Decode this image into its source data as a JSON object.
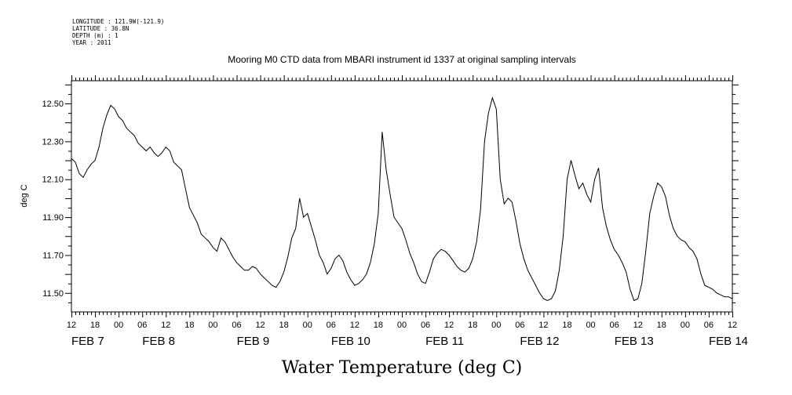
{
  "meta": {
    "longitude": "LONGITUDE : 121.9W(-121.9)",
    "latitude": "LATITUDE : 36.8N",
    "depth": "DEPTH (m) : 1",
    "year": "YEAR : 2011"
  },
  "chart_data": {
    "type": "line",
    "title": "Mooring M0 CTD data from MBARI instrument id 1337 at original sampling intervals",
    "xlabel": "Water Temperature (deg C)",
    "ylabel": "deg C",
    "x_range_hours": [
      0,
      168
    ],
    "ylim": [
      11.4,
      12.62
    ],
    "yticks": [
      "11.50",
      "11.70",
      "11.90",
      "12.10",
      "12.30",
      "12.50"
    ],
    "hour_ticks": [
      "12",
      "18",
      "00",
      "06",
      "12",
      "18",
      "00",
      "06",
      "12",
      "18",
      "00",
      "06",
      "12",
      "18",
      "00",
      "06",
      "12",
      "18",
      "00",
      "06",
      "12",
      "18",
      "00",
      "06",
      "12",
      "18",
      "00",
      "06",
      "12"
    ],
    "day_labels": [
      "FEB  7",
      "FEB  8",
      "FEB  9",
      "FEB 10",
      "FEB 11",
      "FEB 12",
      "FEB 13",
      "FEB 14"
    ],
    "series": [
      {
        "values": [
          [
            0,
            12.21
          ],
          [
            1,
            12.19
          ],
          [
            2,
            12.13
          ],
          [
            3,
            12.11
          ],
          [
            4,
            12.15
          ],
          [
            5,
            12.18
          ],
          [
            6,
            12.2
          ],
          [
            7,
            12.27
          ],
          [
            8,
            12.37
          ],
          [
            9,
            12.44
          ],
          [
            10,
            12.49
          ],
          [
            11,
            12.47
          ],
          [
            12,
            12.43
          ],
          [
            13,
            12.41
          ],
          [
            14,
            12.37
          ],
          [
            15,
            12.35
          ],
          [
            16,
            12.33
          ],
          [
            17,
            12.29
          ],
          [
            18,
            12.27
          ],
          [
            19,
            12.25
          ],
          [
            20,
            12.27
          ],
          [
            21,
            12.24
          ],
          [
            22,
            12.22
          ],
          [
            23,
            12.24
          ],
          [
            24,
            12.27
          ],
          [
            25,
            12.25
          ],
          [
            26,
            12.19
          ],
          [
            27,
            12.17
          ],
          [
            28,
            12.15
          ],
          [
            29,
            12.05
          ],
          [
            30,
            11.95
          ],
          [
            31,
            11.91
          ],
          [
            32,
            11.87
          ],
          [
            33,
            11.81
          ],
          [
            34,
            11.79
          ],
          [
            35,
            11.77
          ],
          [
            36,
            11.74
          ],
          [
            37,
            11.72
          ],
          [
            38,
            11.79
          ],
          [
            39,
            11.77
          ],
          [
            40,
            11.73
          ],
          [
            41,
            11.69
          ],
          [
            42,
            11.66
          ],
          [
            43,
            11.64
          ],
          [
            44,
            11.62
          ],
          [
            45,
            11.62
          ],
          [
            46,
            11.64
          ],
          [
            47,
            11.63
          ],
          [
            48,
            11.6
          ],
          [
            49,
            11.58
          ],
          [
            50,
            11.56
          ],
          [
            51,
            11.54
          ],
          [
            52,
            11.53
          ],
          [
            53,
            11.56
          ],
          [
            54,
            11.61
          ],
          [
            55,
            11.69
          ],
          [
            56,
            11.79
          ],
          [
            57,
            11.84
          ],
          [
            58,
            12.0
          ],
          [
            59,
            11.9
          ],
          [
            60,
            11.92
          ],
          [
            61,
            11.85
          ],
          [
            62,
            11.78
          ],
          [
            63,
            11.7
          ],
          [
            64,
            11.66
          ],
          [
            65,
            11.6
          ],
          [
            66,
            11.63
          ],
          [
            67,
            11.68
          ],
          [
            68,
            11.7
          ],
          [
            69,
            11.67
          ],
          [
            70,
            11.61
          ],
          [
            71,
            11.57
          ],
          [
            72,
            11.54
          ],
          [
            73,
            11.55
          ],
          [
            74,
            11.57
          ],
          [
            75,
            11.6
          ],
          [
            76,
            11.66
          ],
          [
            77,
            11.76
          ],
          [
            78,
            11.92
          ],
          [
            79,
            12.35
          ],
          [
            80,
            12.15
          ],
          [
            81,
            12.02
          ],
          [
            82,
            11.9
          ],
          [
            83,
            11.87
          ],
          [
            84,
            11.84
          ],
          [
            85,
            11.78
          ],
          [
            86,
            11.71
          ],
          [
            87,
            11.66
          ],
          [
            88,
            11.6
          ],
          [
            89,
            11.56
          ],
          [
            90,
            11.55
          ],
          [
            91,
            11.61
          ],
          [
            92,
            11.68
          ],
          [
            93,
            11.71
          ],
          [
            94,
            11.73
          ],
          [
            95,
            11.72
          ],
          [
            96,
            11.7
          ],
          [
            97,
            11.67
          ],
          [
            98,
            11.64
          ],
          [
            99,
            11.62
          ],
          [
            100,
            11.61
          ],
          [
            101,
            11.63
          ],
          [
            102,
            11.68
          ],
          [
            103,
            11.77
          ],
          [
            104,
            11.94
          ],
          [
            105,
            12.3
          ],
          [
            106,
            12.45
          ],
          [
            107,
            12.53
          ],
          [
            108,
            12.47
          ],
          [
            109,
            12.1
          ],
          [
            110,
            11.97
          ],
          [
            111,
            12.0
          ],
          [
            112,
            11.98
          ],
          [
            113,
            11.88
          ],
          [
            114,
            11.76
          ],
          [
            115,
            11.68
          ],
          [
            116,
            11.62
          ],
          [
            117,
            11.58
          ],
          [
            118,
            11.54
          ],
          [
            119,
            11.5
          ],
          [
            120,
            11.47
          ],
          [
            121,
            11.46
          ],
          [
            122,
            11.47
          ],
          [
            123,
            11.51
          ],
          [
            124,
            11.62
          ],
          [
            125,
            11.8
          ],
          [
            126,
            12.1
          ],
          [
            127,
            12.2
          ],
          [
            128,
            12.12
          ],
          [
            129,
            12.05
          ],
          [
            130,
            12.08
          ],
          [
            131,
            12.02
          ],
          [
            132,
            11.98
          ],
          [
            133,
            12.1
          ],
          [
            134,
            12.16
          ],
          [
            135,
            11.95
          ],
          [
            136,
            11.85
          ],
          [
            137,
            11.78
          ],
          [
            138,
            11.73
          ],
          [
            139,
            11.7
          ],
          [
            140,
            11.66
          ],
          [
            141,
            11.61
          ],
          [
            142,
            11.52
          ],
          [
            143,
            11.46
          ],
          [
            144,
            11.47
          ],
          [
            145,
            11.55
          ],
          [
            146,
            11.72
          ],
          [
            147,
            11.92
          ],
          [
            148,
            12.01
          ],
          [
            149,
            12.08
          ],
          [
            150,
            12.06
          ],
          [
            151,
            12.01
          ],
          [
            152,
            11.91
          ],
          [
            153,
            11.84
          ],
          [
            154,
            11.8
          ],
          [
            155,
            11.78
          ],
          [
            156,
            11.77
          ],
          [
            157,
            11.74
          ],
          [
            158,
            11.72
          ],
          [
            159,
            11.68
          ],
          [
            160,
            11.6
          ],
          [
            161,
            11.54
          ],
          [
            162,
            11.53
          ],
          [
            163,
            11.52
          ],
          [
            164,
            11.5
          ],
          [
            165,
            11.49
          ],
          [
            166,
            11.48
          ],
          [
            167,
            11.48
          ],
          [
            168,
            11.47
          ]
        ]
      }
    ]
  }
}
